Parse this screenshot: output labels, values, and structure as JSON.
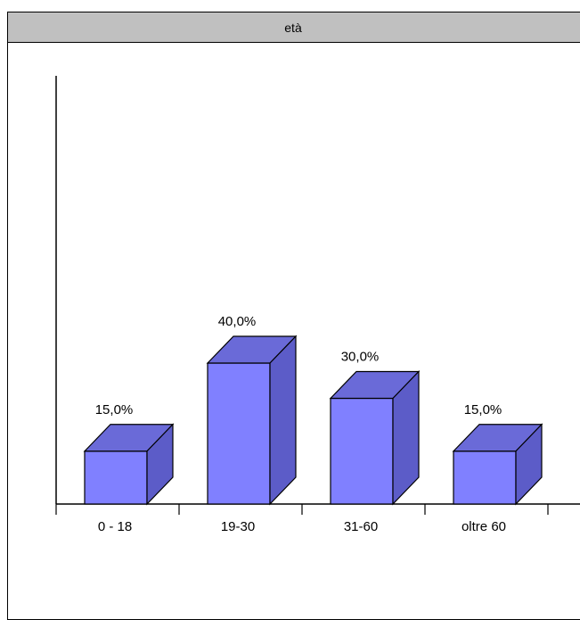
{
  "panel": {
    "title": "età"
  },
  "chart_data": {
    "type": "bar",
    "title": "età",
    "categories": [
      "0 - 18",
      "19-30",
      "31-60",
      "oltre 60"
    ],
    "values": [
      15.0,
      40.0,
      30.0,
      15.0
    ],
    "value_labels": [
      "15,0%",
      "40,0%",
      "30,0%",
      "15,0%"
    ],
    "unit": "%",
    "ylim": [
      0,
      100
    ],
    "three_d": true,
    "legend": "none",
    "grid": false,
    "colors": {
      "front": "#8080ff",
      "top": "#6a6ad8",
      "side": "#5c5cc8",
      "stroke": "#000000"
    }
  }
}
